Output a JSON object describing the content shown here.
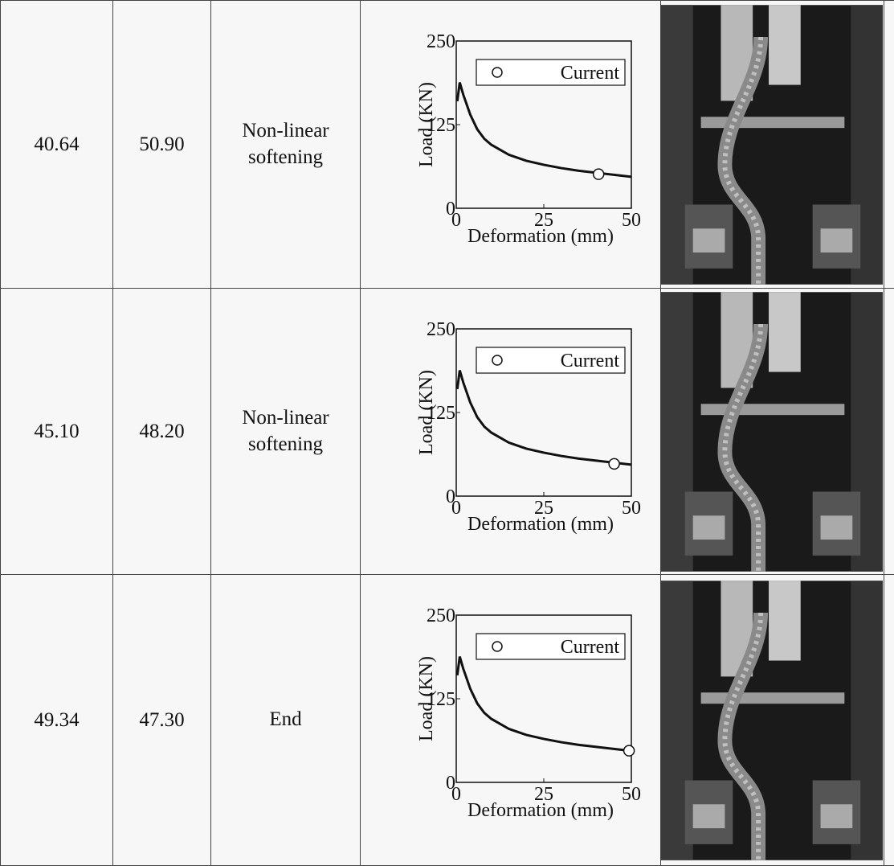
{
  "table": {
    "rows": [
      [
        "40.64",
        "50.90",
        "Non-linear softening"
      ],
      [
        "45.10",
        "48.20",
        "Non-linear softening"
      ],
      [
        "49.34",
        "47.30",
        "End"
      ]
    ]
  },
  "chart_data": [
    {
      "type": "line",
      "x_label": "Deformation (mm)",
      "y_label": "Load (KN)",
      "legend": "Current",
      "xlim": [
        0,
        50
      ],
      "ylim": [
        0,
        250
      ],
      "xticks": [
        0,
        25,
        50
      ],
      "yticks": [
        0,
        125,
        250
      ],
      "x": [
        0.3,
        1,
        2,
        4,
        6,
        8,
        10,
        15,
        20,
        25,
        30,
        35,
        40,
        45,
        50
      ],
      "values": [
        160,
        188,
        170,
        140,
        118,
        104,
        95,
        80,
        71,
        65,
        60,
        56,
        53,
        50,
        47
      ]
    },
    {
      "type": "line",
      "x_label": "Deformation (mm)",
      "y_label": "Load (KN)",
      "legend": "Current",
      "xlim": [
        0,
        50
      ],
      "ylim": [
        0,
        250
      ],
      "xticks": [
        0,
        25,
        50
      ],
      "yticks": [
        0,
        125,
        250
      ],
      "x": [
        0.3,
        1,
        2,
        4,
        6,
        8,
        10,
        15,
        20,
        25,
        30,
        35,
        40,
        45,
        50
      ],
      "values": [
        160,
        188,
        170,
        140,
        118,
        104,
        95,
        80,
        71,
        65,
        60,
        56,
        53,
        50,
        47
      ]
    },
    {
      "type": "line",
      "x_label": "Deformation (mm)",
      "y_label": "Load (KN)",
      "legend": "Current",
      "xlim": [
        0,
        50
      ],
      "ylim": [
        0,
        250
      ],
      "xticks": [
        0,
        25,
        50
      ],
      "yticks": [
        0,
        125,
        250
      ],
      "x": [
        0.3,
        1,
        2,
        4,
        6,
        8,
        10,
        15,
        20,
        25,
        30,
        35,
        40,
        45,
        50
      ],
      "values": [
        160,
        188,
        170,
        140,
        118,
        104,
        95,
        80,
        71,
        65,
        60,
        56,
        53,
        50,
        47
      ]
    }
  ]
}
